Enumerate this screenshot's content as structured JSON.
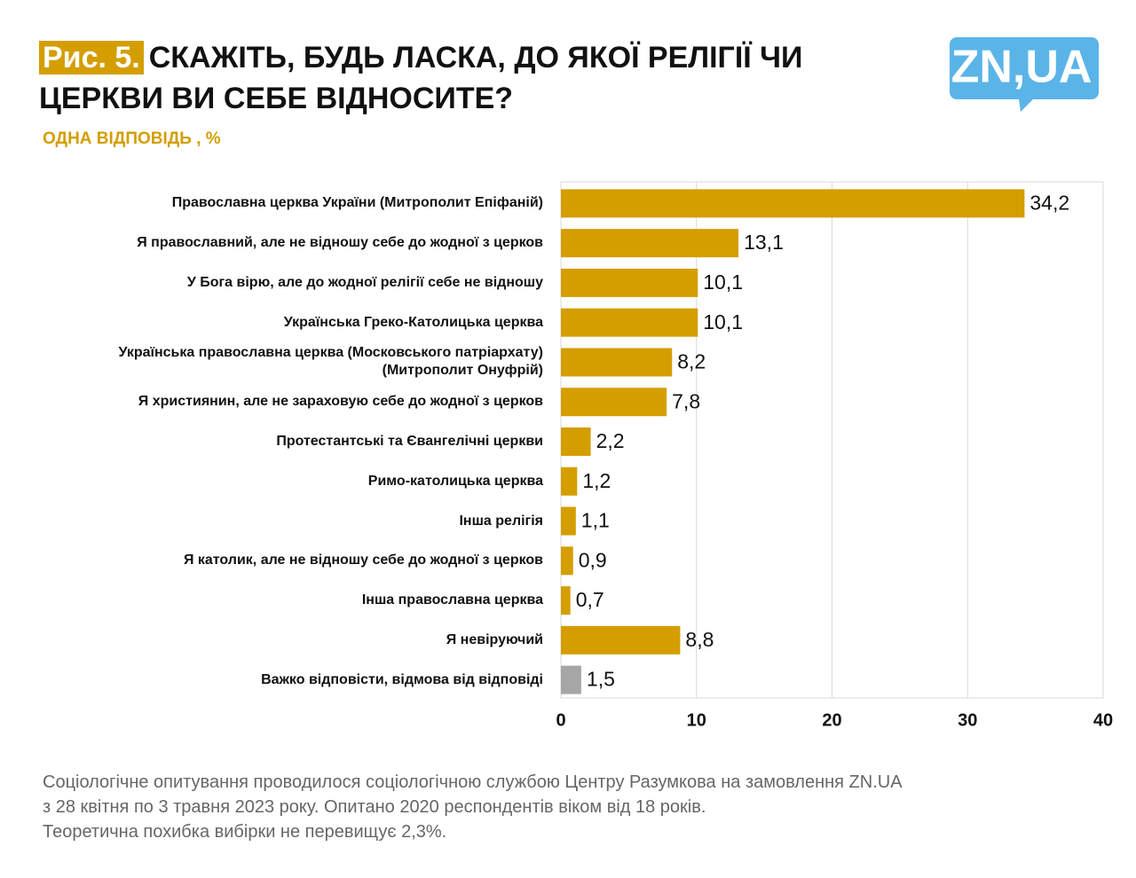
{
  "logo": "ZN,UA",
  "chart_data": {
    "type": "barh",
    "figure_label": "Рис. 5.",
    "title": "СКАЖІТЬ, БУДЬ ЛАСКА, ДО ЯКОЇ РЕЛІГІЇ ЧИ ЦЕРКВИ ВИ СЕБЕ ВІДНОСИТЕ?",
    "subtitle": "ОДНА ВІДПОВІДЬ , %",
    "categories": [
      "Православна церква України (Митрополит Епіфаній)",
      "Я православний, але не відношу себе до жодної з церков",
      "У Бога вірю, але до жодної релігії себе не відношу",
      "Українська Греко-Католицька церква",
      "Українська православна церква (Московського патріархату) (Митрополит Онуфрій)",
      "Я християнин, але не зараховую себе до жодної з церков",
      "Протестантські та Євангелічні церкви",
      "Римо-католицька церква",
      "Інша релігія",
      "Я  католик, але не відношу себе до жодної з церков",
      "Інша православна церква",
      "Я невіруючий",
      "Важко відповісти, відмова від відповіді"
    ],
    "values": [
      34.2,
      13.1,
      10.1,
      10.1,
      8.2,
      7.8,
      2.2,
      1.2,
      1.1,
      0.9,
      0.7,
      8.8,
      1.5
    ],
    "value_labels": [
      "34,2",
      "13,1",
      "10,1",
      "10,1",
      "8,2",
      "7,8",
      "2,2",
      "1,2",
      "1,1",
      "0,9",
      "0,7",
      "8,8",
      "1,5"
    ],
    "colors": [
      "#d49e00",
      "#d49e00",
      "#d49e00",
      "#d49e00",
      "#d49e00",
      "#d49e00",
      "#d49e00",
      "#d49e00",
      "#d49e00",
      "#d49e00",
      "#d49e00",
      "#d49e00",
      "#a6a6a6"
    ],
    "xlim": [
      0,
      40
    ],
    "xticks": [
      0,
      10,
      20,
      30,
      40
    ],
    "grid": true
  },
  "footer": [
    "Соціологічне опитування проводилося соціологічною службою Центру Разумкова на замовлення ZN.UA",
    "з 28 квітня по 3 травня 2023 року. Опитано 2020 респондентів віком від 18 років.",
    "Теоретична похибка вибірки не перевищує 2,3%."
  ]
}
